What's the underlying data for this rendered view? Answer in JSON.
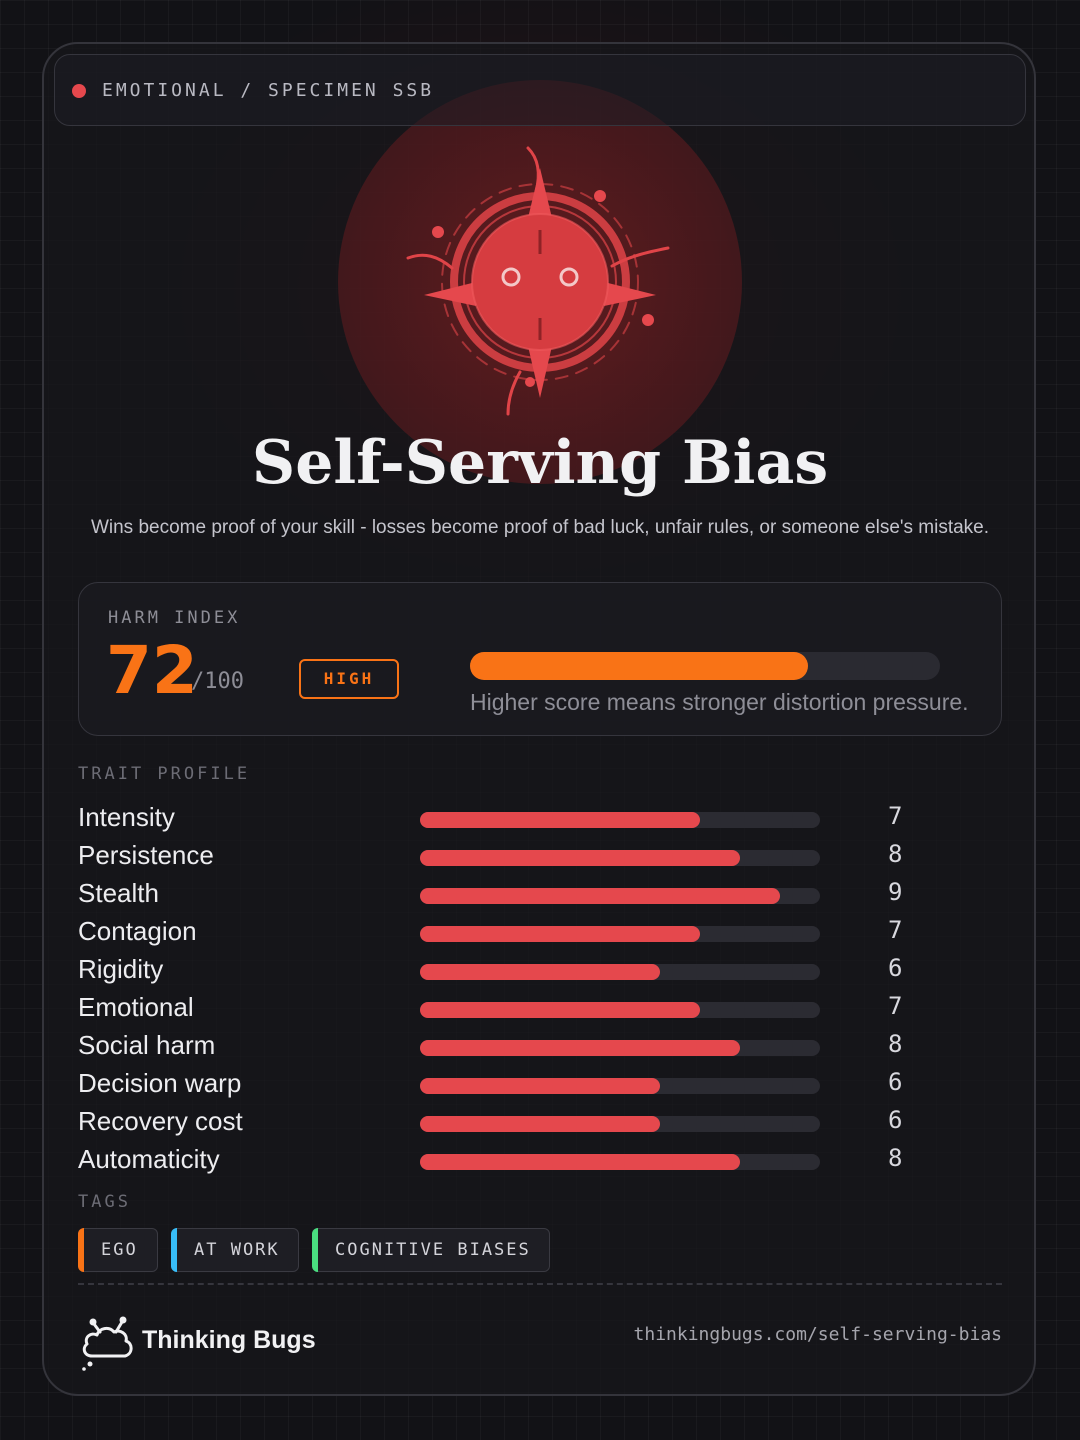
{
  "header": {
    "breadcrumb": "EMOTIONAL / SPECIMEN SSB",
    "dot_color": "#e5484d"
  },
  "emblem": {
    "icon": "bug-creature-icon"
  },
  "title": "Self-Serving Bias",
  "subtitle": "Wins become proof of your skill - losses become proof of bad luck, unfair rules, or someone else's mistake.",
  "harm": {
    "label": "HARM INDEX",
    "score": "72",
    "max": "/100",
    "fraction": 0.72,
    "level": "HIGH",
    "note": "Higher score means stronger distortion pressure.",
    "color": "#f97316"
  },
  "traits": {
    "label": "TRAIT PROFILE",
    "max": 10,
    "color": "#e5484d",
    "items": [
      {
        "name": "Intensity",
        "value": 7
      },
      {
        "name": "Persistence",
        "value": 8
      },
      {
        "name": "Stealth",
        "value": 9
      },
      {
        "name": "Contagion",
        "value": 7
      },
      {
        "name": "Rigidity",
        "value": 6
      },
      {
        "name": "Emotional",
        "value": 7
      },
      {
        "name": "Social harm",
        "value": 8
      },
      {
        "name": "Decision warp",
        "value": 6
      },
      {
        "name": "Recovery cost",
        "value": 6
      },
      {
        "name": "Automaticity",
        "value": 8
      }
    ]
  },
  "tags": {
    "label": "TAGS",
    "items": [
      {
        "label": "EGO",
        "color": "#f97316"
      },
      {
        "label": "AT WORK",
        "color": "#38bdf8"
      },
      {
        "label": "COGNITIVE BIASES",
        "color": "#4ade80"
      }
    ]
  },
  "footer": {
    "brand": "Thinking Bugs",
    "logo_icon": "cloud-bug-logo-icon",
    "url": "thinkingbugs.com/self-serving-bias"
  }
}
